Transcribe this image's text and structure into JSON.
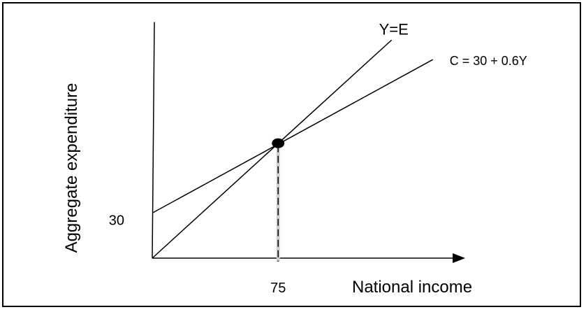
{
  "chart_data": {
    "type": "line",
    "xlabel": "National income",
    "ylabel": "Aggregate expenditure",
    "x_ticks": [
      {
        "value": 75,
        "label": "75"
      }
    ],
    "y_ticks": [
      {
        "value": 30,
        "label": "30"
      }
    ],
    "xlim": [
      0,
      182
    ],
    "ylim": [
      0,
      157
    ],
    "grid": false,
    "series": [
      {
        "name": "Y=E",
        "line_label": "Y=E",
        "points": [
          [
            0,
            0
          ],
          [
            145,
            145
          ]
        ]
      },
      {
        "name": "C = 30 + 0.6Y",
        "line_label": "C = 30 + 0.6Y",
        "points": [
          [
            0,
            30
          ],
          [
            170,
            132
          ]
        ]
      }
    ],
    "equilibrium": {
      "x": 75,
      "y": 75
    },
    "colors": {
      "line": "#000000",
      "background": "#ffffff"
    }
  }
}
